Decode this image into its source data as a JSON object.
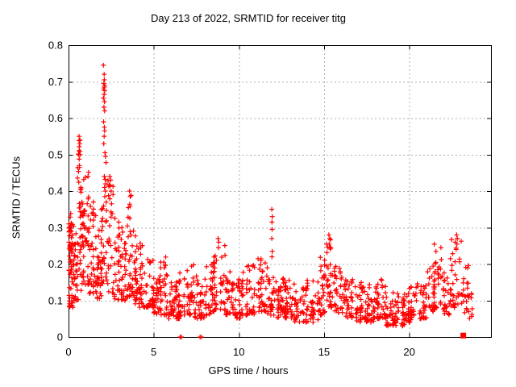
{
  "chart_data": {
    "type": "scatter",
    "title": "Day 213 of 2022, SRMTID for receiver titg",
    "xlabel": "GPS time / hours",
    "ylabel": "SRMTID / TECUs",
    "xlim": [
      0,
      24.8
    ],
    "ylim": [
      0,
      0.8
    ],
    "xticks": {
      "values": [
        0,
        5,
        10,
        15,
        20
      ],
      "labels": [
        "0",
        "5",
        "10",
        "15",
        "20"
      ]
    },
    "yticks": {
      "values": [
        0,
        0.1,
        0.2,
        0.3,
        0.4,
        0.5,
        0.6,
        0.7,
        0.8
      ],
      "labels": [
        "0",
        "0.1",
        "0.2",
        "0.3",
        "0.4",
        "0.5",
        "0.6",
        "0.7",
        "0.8"
      ]
    },
    "grid": {
      "show": true,
      "style": "dashed",
      "color": "#b0b0b0"
    },
    "legend": "none",
    "marker": "plus",
    "marker_color": "#ff0000",
    "axis_color": "#000000",
    "point_clusters_format": [
      "x_start_h",
      "x_end_h",
      "y_min_TECU",
      "y_max_TECU",
      "n_points",
      "low_bias_exponent"
    ],
    "point_clusters": [
      [
        0.0,
        0.3,
        0.08,
        0.34,
        45,
        1.3
      ],
      [
        0.05,
        0.25,
        0.2,
        0.33,
        12,
        1.0
      ],
      [
        0.3,
        0.55,
        0.1,
        0.3,
        30,
        1.5
      ],
      [
        0.55,
        0.8,
        0.12,
        0.42,
        28,
        1.4
      ],
      [
        0.55,
        0.78,
        0.42,
        0.55,
        12,
        1.0
      ],
      [
        0.8,
        1.2,
        0.14,
        0.46,
        45,
        1.3
      ],
      [
        1.2,
        1.6,
        0.12,
        0.38,
        38,
        1.5
      ],
      [
        1.6,
        1.95,
        0.1,
        0.3,
        32,
        1.5
      ],
      [
        1.95,
        2.3,
        0.14,
        0.36,
        25,
        1.3
      ],
      [
        2.3,
        2.6,
        0.12,
        0.44,
        25,
        1.7
      ],
      [
        2.6,
        3.0,
        0.1,
        0.33,
        30,
        1.6
      ],
      [
        3.0,
        3.4,
        0.1,
        0.3,
        32,
        1.6
      ],
      [
        3.4,
        3.8,
        0.11,
        0.4,
        36,
        1.6
      ],
      [
        3.8,
        4.2,
        0.09,
        0.3,
        32,
        1.7
      ],
      [
        4.2,
        4.6,
        0.08,
        0.26,
        30,
        1.6
      ],
      [
        4.6,
        5.0,
        0.08,
        0.22,
        30,
        1.6
      ],
      [
        5.0,
        5.4,
        0.06,
        0.18,
        30,
        1.6
      ],
      [
        5.4,
        5.8,
        0.06,
        0.27,
        30,
        2.0
      ],
      [
        5.8,
        6.4,
        0.05,
        0.16,
        38,
        1.6
      ],
      [
        6.4,
        7.0,
        0.05,
        0.18,
        38,
        1.7
      ],
      [
        7.0,
        7.4,
        0.06,
        0.2,
        28,
        1.7
      ],
      [
        7.4,
        8.0,
        0.05,
        0.17,
        38,
        1.6
      ],
      [
        8.0,
        8.5,
        0.06,
        0.2,
        34,
        1.6
      ],
      [
        8.5,
        9.2,
        0.07,
        0.27,
        42,
        1.8
      ],
      [
        9.2,
        9.8,
        0.06,
        0.18,
        36,
        1.6
      ],
      [
        9.8,
        10.4,
        0.05,
        0.18,
        36,
        1.6
      ],
      [
        10.4,
        11.0,
        0.06,
        0.2,
        36,
        1.6
      ],
      [
        11.0,
        11.6,
        0.07,
        0.22,
        36,
        1.7
      ],
      [
        11.6,
        12.1,
        0.06,
        0.2,
        30,
        1.6
      ],
      [
        12.1,
        12.7,
        0.05,
        0.17,
        36,
        1.6
      ],
      [
        12.7,
        13.3,
        0.05,
        0.17,
        36,
        1.6
      ],
      [
        13.3,
        14.0,
        0.04,
        0.14,
        38,
        1.5
      ],
      [
        14.0,
        14.7,
        0.04,
        0.16,
        38,
        1.5
      ],
      [
        14.7,
        15.1,
        0.06,
        0.22,
        28,
        1.6
      ],
      [
        15.1,
        15.6,
        0.08,
        0.28,
        34,
        1.6
      ],
      [
        15.6,
        16.1,
        0.06,
        0.2,
        30,
        1.6
      ],
      [
        16.1,
        16.8,
        0.05,
        0.16,
        38,
        1.5
      ],
      [
        16.8,
        17.4,
        0.04,
        0.15,
        36,
        1.5
      ],
      [
        17.4,
        18.0,
        0.04,
        0.15,
        36,
        1.5
      ],
      [
        18.0,
        18.6,
        0.05,
        0.16,
        36,
        1.5
      ],
      [
        18.6,
        19.2,
        0.03,
        0.13,
        36,
        1.4
      ],
      [
        19.2,
        19.8,
        0.03,
        0.12,
        36,
        1.4
      ],
      [
        19.8,
        20.4,
        0.04,
        0.14,
        36,
        1.5
      ],
      [
        20.4,
        21.0,
        0.05,
        0.16,
        32,
        1.5
      ],
      [
        21.0,
        21.5,
        0.07,
        0.2,
        30,
        1.6
      ],
      [
        21.5,
        21.9,
        0.08,
        0.26,
        28,
        1.7
      ],
      [
        21.9,
        22.4,
        0.06,
        0.18,
        24,
        1.5
      ],
      [
        22.4,
        23.1,
        0.08,
        0.28,
        36,
        1.7
      ],
      [
        23.1,
        23.5,
        0.06,
        0.2,
        20,
        1.6
      ],
      [
        23.5,
        23.7,
        0.05,
        0.12,
        8,
        1.4
      ]
    ],
    "notable_points": [
      [
        2.05,
        0.745
      ],
      [
        2.09,
        0.72
      ],
      [
        2.1,
        0.705
      ],
      [
        2.07,
        0.695
      ],
      [
        2.12,
        0.69
      ],
      [
        2.1,
        0.685
      ],
      [
        2.06,
        0.68
      ],
      [
        2.12,
        0.675
      ],
      [
        2.09,
        0.665
      ],
      [
        2.05,
        0.655
      ],
      [
        2.11,
        0.645
      ],
      [
        2.08,
        0.63
      ],
      [
        2.12,
        0.62
      ],
      [
        2.06,
        0.59
      ],
      [
        2.1,
        0.575
      ],
      [
        2.12,
        0.565
      ],
      [
        2.09,
        0.55
      ],
      [
        2.07,
        0.53
      ],
      [
        2.14,
        0.505
      ],
      [
        2.17,
        0.495
      ],
      [
        2.2,
        0.478
      ],
      [
        2.1,
        0.44
      ],
      [
        2.15,
        0.432
      ],
      [
        2.18,
        0.42
      ],
      [
        2.11,
        0.41
      ],
      [
        2.16,
        0.4
      ],
      [
        2.13,
        0.385
      ],
      [
        2.21,
        0.37
      ],
      [
        0.02,
        0.31
      ],
      [
        0.04,
        0.29
      ],
      [
        0.03,
        0.26
      ],
      [
        0.62,
        0.55
      ],
      [
        0.66,
        0.53
      ],
      [
        0.6,
        0.5
      ],
      [
        0.68,
        0.5
      ],
      [
        0.64,
        0.47
      ],
      [
        2.42,
        0.44
      ],
      [
        2.47,
        0.43
      ],
      [
        2.44,
        0.415
      ],
      [
        2.5,
        0.4
      ],
      [
        3.58,
        0.4
      ],
      [
        3.62,
        0.385
      ],
      [
        8.78,
        0.27
      ],
      [
        8.82,
        0.26
      ],
      [
        8.8,
        0.245
      ],
      [
        11.93,
        0.35
      ],
      [
        11.96,
        0.33
      ],
      [
        11.94,
        0.315
      ],
      [
        11.95,
        0.295
      ],
      [
        11.93,
        0.27
      ],
      [
        11.96,
        0.235
      ],
      [
        11.94,
        0.22
      ],
      [
        15.28,
        0.28
      ],
      [
        15.33,
        0.27
      ],
      [
        15.3,
        0.255
      ],
      [
        22.78,
        0.28
      ],
      [
        22.82,
        0.27
      ],
      [
        22.8,
        0.255
      ],
      [
        22.75,
        0.24
      ]
    ],
    "zero_line_points": [
      [
        6.55,
        0.0
      ],
      [
        6.63,
        0.0
      ],
      [
        7.72,
        0.0
      ],
      [
        7.8,
        0.0
      ]
    ],
    "square_marker": {
      "x": 23.17,
      "y": 0.004
    }
  }
}
